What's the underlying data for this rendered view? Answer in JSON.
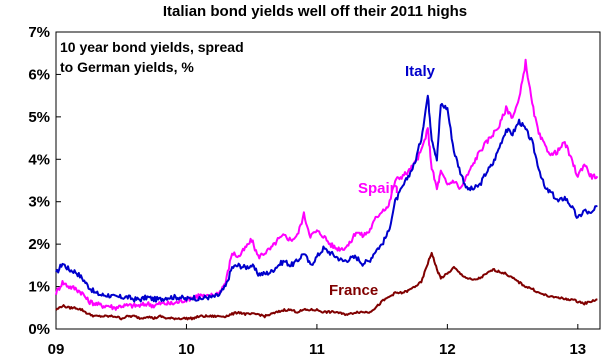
{
  "chart_data": {
    "type": "line",
    "title": "Italian bond yields well off their 2011 highs",
    "subtitle_lines": [
      "10 year bond yields, spread",
      "to German yields, %"
    ],
    "xlabel": "",
    "ylabel": "",
    "x_ticks": [
      "09",
      "10",
      "11",
      "12",
      "13"
    ],
    "x_tick_years": [
      2009,
      2010,
      2011,
      2012,
      2013
    ],
    "xlim": [
      2009.0,
      2013.17
    ],
    "y_ticks": [
      "0%",
      "1%",
      "2%",
      "3%",
      "4%",
      "5%",
      "6%",
      "7%"
    ],
    "ylim": [
      0,
      7
    ],
    "grid": false,
    "series": [
      {
        "name": "Italy",
        "color": "#0000cc",
        "x": [
          2009.0,
          2009.05,
          2009.1,
          2009.15,
          2009.2,
          2009.25,
          2009.3,
          2009.35,
          2009.4,
          2009.45,
          2009.5,
          2009.55,
          2009.6,
          2009.65,
          2009.7,
          2009.75,
          2009.8,
          2009.85,
          2009.9,
          2009.95,
          2010.0,
          2010.05,
          2010.1,
          2010.15,
          2010.2,
          2010.25,
          2010.3,
          2010.35,
          2010.4,
          2010.45,
          2010.5,
          2010.55,
          2010.6,
          2010.65,
          2010.7,
          2010.75,
          2010.8,
          2010.85,
          2010.9,
          2010.95,
          2011.0,
          2011.05,
          2011.1,
          2011.15,
          2011.2,
          2011.25,
          2011.3,
          2011.35,
          2011.4,
          2011.45,
          2011.5,
          2011.55,
          2011.6,
          2011.65,
          2011.7,
          2011.75,
          2011.8,
          2011.85,
          2011.88,
          2011.92,
          2011.95,
          2012.0,
          2012.05,
          2012.1,
          2012.15,
          2012.2,
          2012.25,
          2012.3,
          2012.35,
          2012.4,
          2012.45,
          2012.5,
          2012.55,
          2012.6,
          2012.65,
          2012.7,
          2012.75,
          2012.8,
          2012.85,
          2012.9,
          2012.95,
          2013.0,
          2013.05,
          2013.1,
          2013.15
        ],
        "values": [
          1.3,
          1.55,
          1.4,
          1.35,
          1.2,
          1.0,
          0.85,
          0.8,
          0.8,
          0.75,
          0.75,
          0.75,
          0.7,
          0.7,
          0.75,
          0.7,
          0.7,
          0.75,
          0.75,
          0.75,
          0.7,
          0.75,
          0.7,
          0.75,
          0.75,
          0.8,
          1.0,
          1.45,
          1.5,
          1.45,
          1.5,
          1.3,
          1.3,
          1.35,
          1.5,
          1.6,
          1.5,
          1.6,
          1.8,
          1.5,
          1.7,
          1.9,
          1.8,
          1.7,
          1.6,
          1.65,
          1.7,
          1.55,
          1.6,
          1.85,
          2.0,
          2.3,
          3.0,
          3.3,
          3.6,
          3.9,
          4.5,
          5.5,
          4.5,
          4.0,
          5.3,
          5.2,
          4.2,
          3.7,
          3.3,
          3.3,
          3.4,
          3.7,
          3.9,
          4.3,
          4.7,
          4.6,
          4.9,
          4.7,
          4.4,
          3.8,
          3.3,
          3.2,
          3.0,
          3.1,
          2.9,
          2.6,
          2.8,
          2.7,
          2.9
        ]
      },
      {
        "name": "Spain",
        "color": "#ff00ff",
        "x": [
          2009.0,
          2009.05,
          2009.1,
          2009.15,
          2009.2,
          2009.25,
          2009.3,
          2009.35,
          2009.4,
          2009.45,
          2009.5,
          2009.55,
          2009.6,
          2009.65,
          2009.7,
          2009.75,
          2009.8,
          2009.85,
          2009.9,
          2009.95,
          2010.0,
          2010.05,
          2010.1,
          2010.15,
          2010.2,
          2010.25,
          2010.3,
          2010.35,
          2010.4,
          2010.45,
          2010.5,
          2010.55,
          2010.6,
          2010.65,
          2010.7,
          2010.75,
          2010.8,
          2010.85,
          2010.9,
          2010.95,
          2011.0,
          2011.05,
          2011.1,
          2011.15,
          2011.2,
          2011.25,
          2011.3,
          2011.35,
          2011.4,
          2011.45,
          2011.5,
          2011.55,
          2011.6,
          2011.65,
          2011.7,
          2011.75,
          2011.8,
          2011.85,
          2011.88,
          2011.92,
          2011.95,
          2012.0,
          2012.05,
          2012.1,
          2012.15,
          2012.2,
          2012.25,
          2012.3,
          2012.35,
          2012.4,
          2012.45,
          2012.5,
          2012.55,
          2012.6,
          2012.65,
          2012.7,
          2012.75,
          2012.8,
          2012.85,
          2012.9,
          2012.95,
          2013.0,
          2013.05,
          2013.1,
          2013.15
        ],
        "values": [
          0.85,
          1.1,
          1.0,
          0.95,
          0.85,
          0.65,
          0.6,
          0.55,
          0.55,
          0.5,
          0.55,
          0.55,
          0.55,
          0.55,
          0.6,
          0.55,
          0.6,
          0.6,
          0.6,
          0.65,
          0.7,
          0.75,
          0.8,
          0.75,
          0.8,
          0.85,
          1.1,
          1.8,
          1.7,
          1.9,
          2.1,
          1.7,
          1.8,
          1.9,
          2.1,
          2.2,
          2.1,
          2.2,
          2.7,
          2.2,
          2.3,
          2.2,
          2.0,
          1.9,
          1.9,
          2.0,
          2.3,
          2.2,
          2.3,
          2.6,
          2.8,
          2.9,
          3.5,
          3.6,
          3.7,
          3.9,
          4.2,
          4.7,
          3.8,
          3.3,
          3.7,
          3.4,
          3.5,
          3.3,
          3.6,
          3.9,
          4.2,
          4.4,
          4.6,
          4.8,
          5.2,
          5.0,
          5.4,
          6.3,
          5.3,
          4.6,
          4.3,
          4.1,
          4.2,
          4.4,
          4.0,
          3.6,
          3.9,
          3.6,
          3.6
        ]
      },
      {
        "name": "France",
        "color": "#800000",
        "x": [
          2009.0,
          2009.05,
          2009.1,
          2009.15,
          2009.2,
          2009.25,
          2009.3,
          2009.35,
          2009.4,
          2009.45,
          2009.5,
          2009.55,
          2009.6,
          2009.65,
          2009.7,
          2009.75,
          2009.8,
          2009.85,
          2009.9,
          2009.95,
          2010.0,
          2010.05,
          2010.1,
          2010.15,
          2010.2,
          2010.25,
          2010.3,
          2010.35,
          2010.4,
          2010.45,
          2010.5,
          2010.55,
          2010.6,
          2010.65,
          2010.7,
          2010.75,
          2010.8,
          2010.85,
          2010.9,
          2010.95,
          2011.0,
          2011.05,
          2011.1,
          2011.15,
          2011.2,
          2011.25,
          2011.3,
          2011.35,
          2011.4,
          2011.45,
          2011.5,
          2011.55,
          2011.6,
          2011.65,
          2011.7,
          2011.75,
          2011.8,
          2011.85,
          2011.88,
          2011.92,
          2011.95,
          2012.0,
          2012.05,
          2012.1,
          2012.15,
          2012.2,
          2012.25,
          2012.3,
          2012.35,
          2012.4,
          2012.45,
          2012.5,
          2012.55,
          2012.6,
          2012.65,
          2012.7,
          2012.75,
          2012.8,
          2012.85,
          2012.9,
          2012.95,
          2013.0,
          2013.05,
          2013.1,
          2013.15
        ],
        "values": [
          0.45,
          0.55,
          0.5,
          0.5,
          0.45,
          0.35,
          0.3,
          0.3,
          0.3,
          0.3,
          0.25,
          0.3,
          0.3,
          0.25,
          0.3,
          0.25,
          0.3,
          0.25,
          0.25,
          0.25,
          0.25,
          0.25,
          0.3,
          0.3,
          0.3,
          0.3,
          0.3,
          0.35,
          0.4,
          0.35,
          0.35,
          0.35,
          0.3,
          0.35,
          0.4,
          0.45,
          0.45,
          0.4,
          0.45,
          0.45,
          0.45,
          0.4,
          0.4,
          0.4,
          0.35,
          0.35,
          0.4,
          0.4,
          0.4,
          0.5,
          0.65,
          0.75,
          0.85,
          0.85,
          0.9,
          1.0,
          1.1,
          1.55,
          1.8,
          1.4,
          1.2,
          1.3,
          1.45,
          1.3,
          1.2,
          1.15,
          1.2,
          1.3,
          1.4,
          1.35,
          1.3,
          1.2,
          1.1,
          1.0,
          0.95,
          0.85,
          0.8,
          0.75,
          0.75,
          0.7,
          0.7,
          0.65,
          0.6,
          0.65,
          0.7
        ]
      }
    ],
    "series_labels": [
      "Italy",
      "Spain",
      "France"
    ]
  }
}
